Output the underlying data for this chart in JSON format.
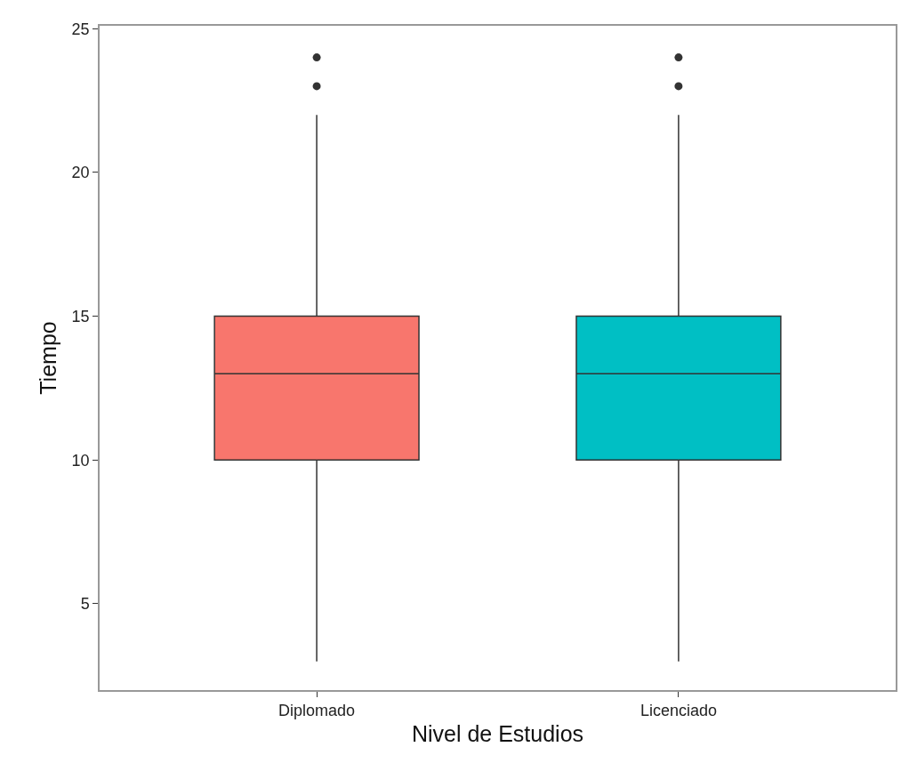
{
  "chart_data": {
    "type": "box",
    "xlabel": "Nivel de Estudios",
    "ylabel": "Tiempo",
    "categories": [
      "Diplomado",
      "Licenciado"
    ],
    "colors": [
      "#f8766d",
      "#00bfc4"
    ],
    "boxes": [
      {
        "low": 3,
        "q1": 10,
        "median": 13,
        "q3": 15,
        "high": 22,
        "outliers": [
          23,
          24
        ]
      },
      {
        "low": 3,
        "q1": 10,
        "median": 13,
        "q3": 15,
        "high": 22,
        "outliers": [
          23,
          24
        ]
      }
    ],
    "ylim": [
      2,
      25.1
    ],
    "yticks": [
      5,
      10,
      15,
      20,
      25
    ],
    "grid": false
  }
}
